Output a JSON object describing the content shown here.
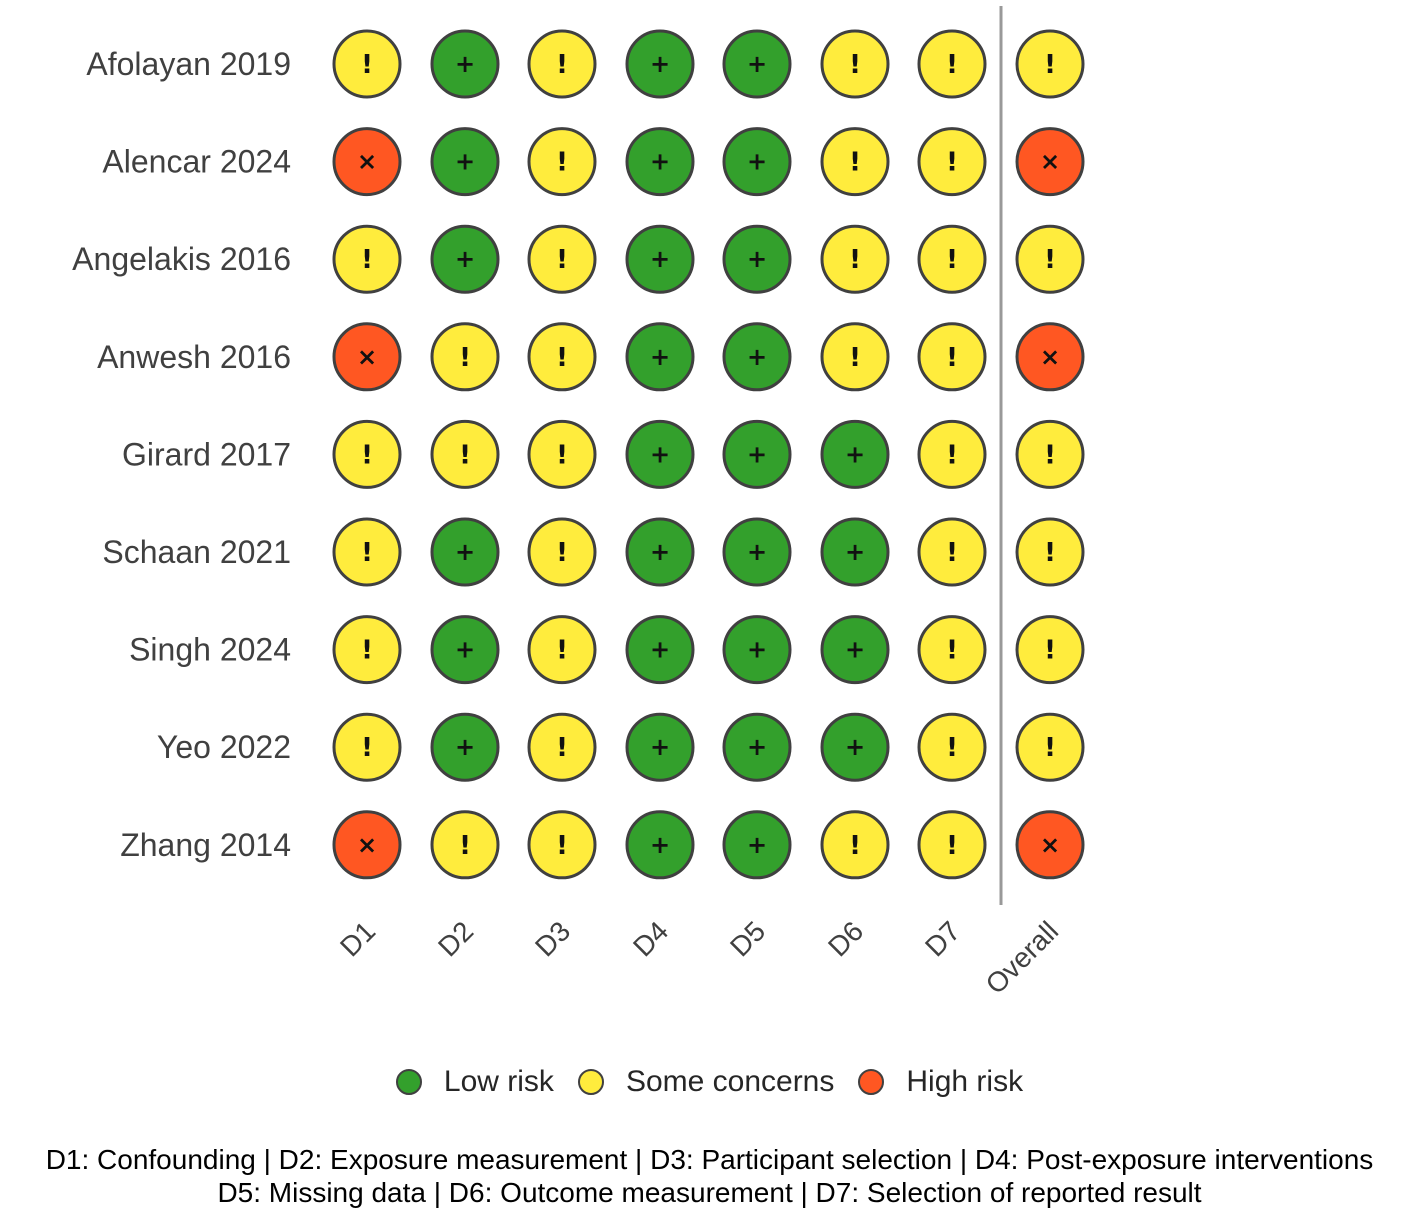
{
  "chart_data": {
    "type": "table",
    "studies": [
      "Afolayan 2019",
      "Alencar 2024",
      "Angelakis 2016",
      "Anwesh 2016",
      "Girard 2017",
      "Schaan 2021",
      "Singh 2024",
      "Yeo 2022",
      "Zhang 2014"
    ],
    "domains": [
      "D1",
      "D2",
      "D3",
      "D4",
      "D5",
      "D6",
      "D7",
      "Overall"
    ],
    "judgements": [
      [
        "some",
        "low",
        "some",
        "low",
        "low",
        "some",
        "some",
        "some"
      ],
      [
        "high",
        "low",
        "some",
        "low",
        "low",
        "some",
        "some",
        "high"
      ],
      [
        "some",
        "low",
        "some",
        "low",
        "low",
        "some",
        "some",
        "some"
      ],
      [
        "high",
        "some",
        "some",
        "low",
        "low",
        "some",
        "some",
        "high"
      ],
      [
        "some",
        "some",
        "some",
        "low",
        "low",
        "low",
        "some",
        "some"
      ],
      [
        "some",
        "low",
        "some",
        "low",
        "low",
        "low",
        "some",
        "some"
      ],
      [
        "some",
        "low",
        "some",
        "low",
        "low",
        "low",
        "some",
        "some"
      ],
      [
        "some",
        "low",
        "some",
        "low",
        "low",
        "low",
        "some",
        "some"
      ],
      [
        "high",
        "some",
        "some",
        "low",
        "low",
        "some",
        "some",
        "high"
      ]
    ],
    "levels": {
      "low": {
        "label": "Low risk",
        "symbol": "+",
        "color": "#33a02c"
      },
      "some": {
        "label": "Some concerns",
        "symbol": "!",
        "color": "#ffec3d"
      },
      "high": {
        "label": "High risk",
        "symbol": "×",
        "color": "#ff5722"
      }
    }
  },
  "legend": {
    "low_label": "Low risk",
    "some_label": "Some concerns",
    "high_label": "High risk"
  },
  "footnote": {
    "line1": "D1: Confounding | D2: Exposure measurement | D3: Participant selection | D4: Post-exposure interventions",
    "line2": "D5: Missing data | D6: Outcome measurement | D7: Selection of reported result"
  }
}
